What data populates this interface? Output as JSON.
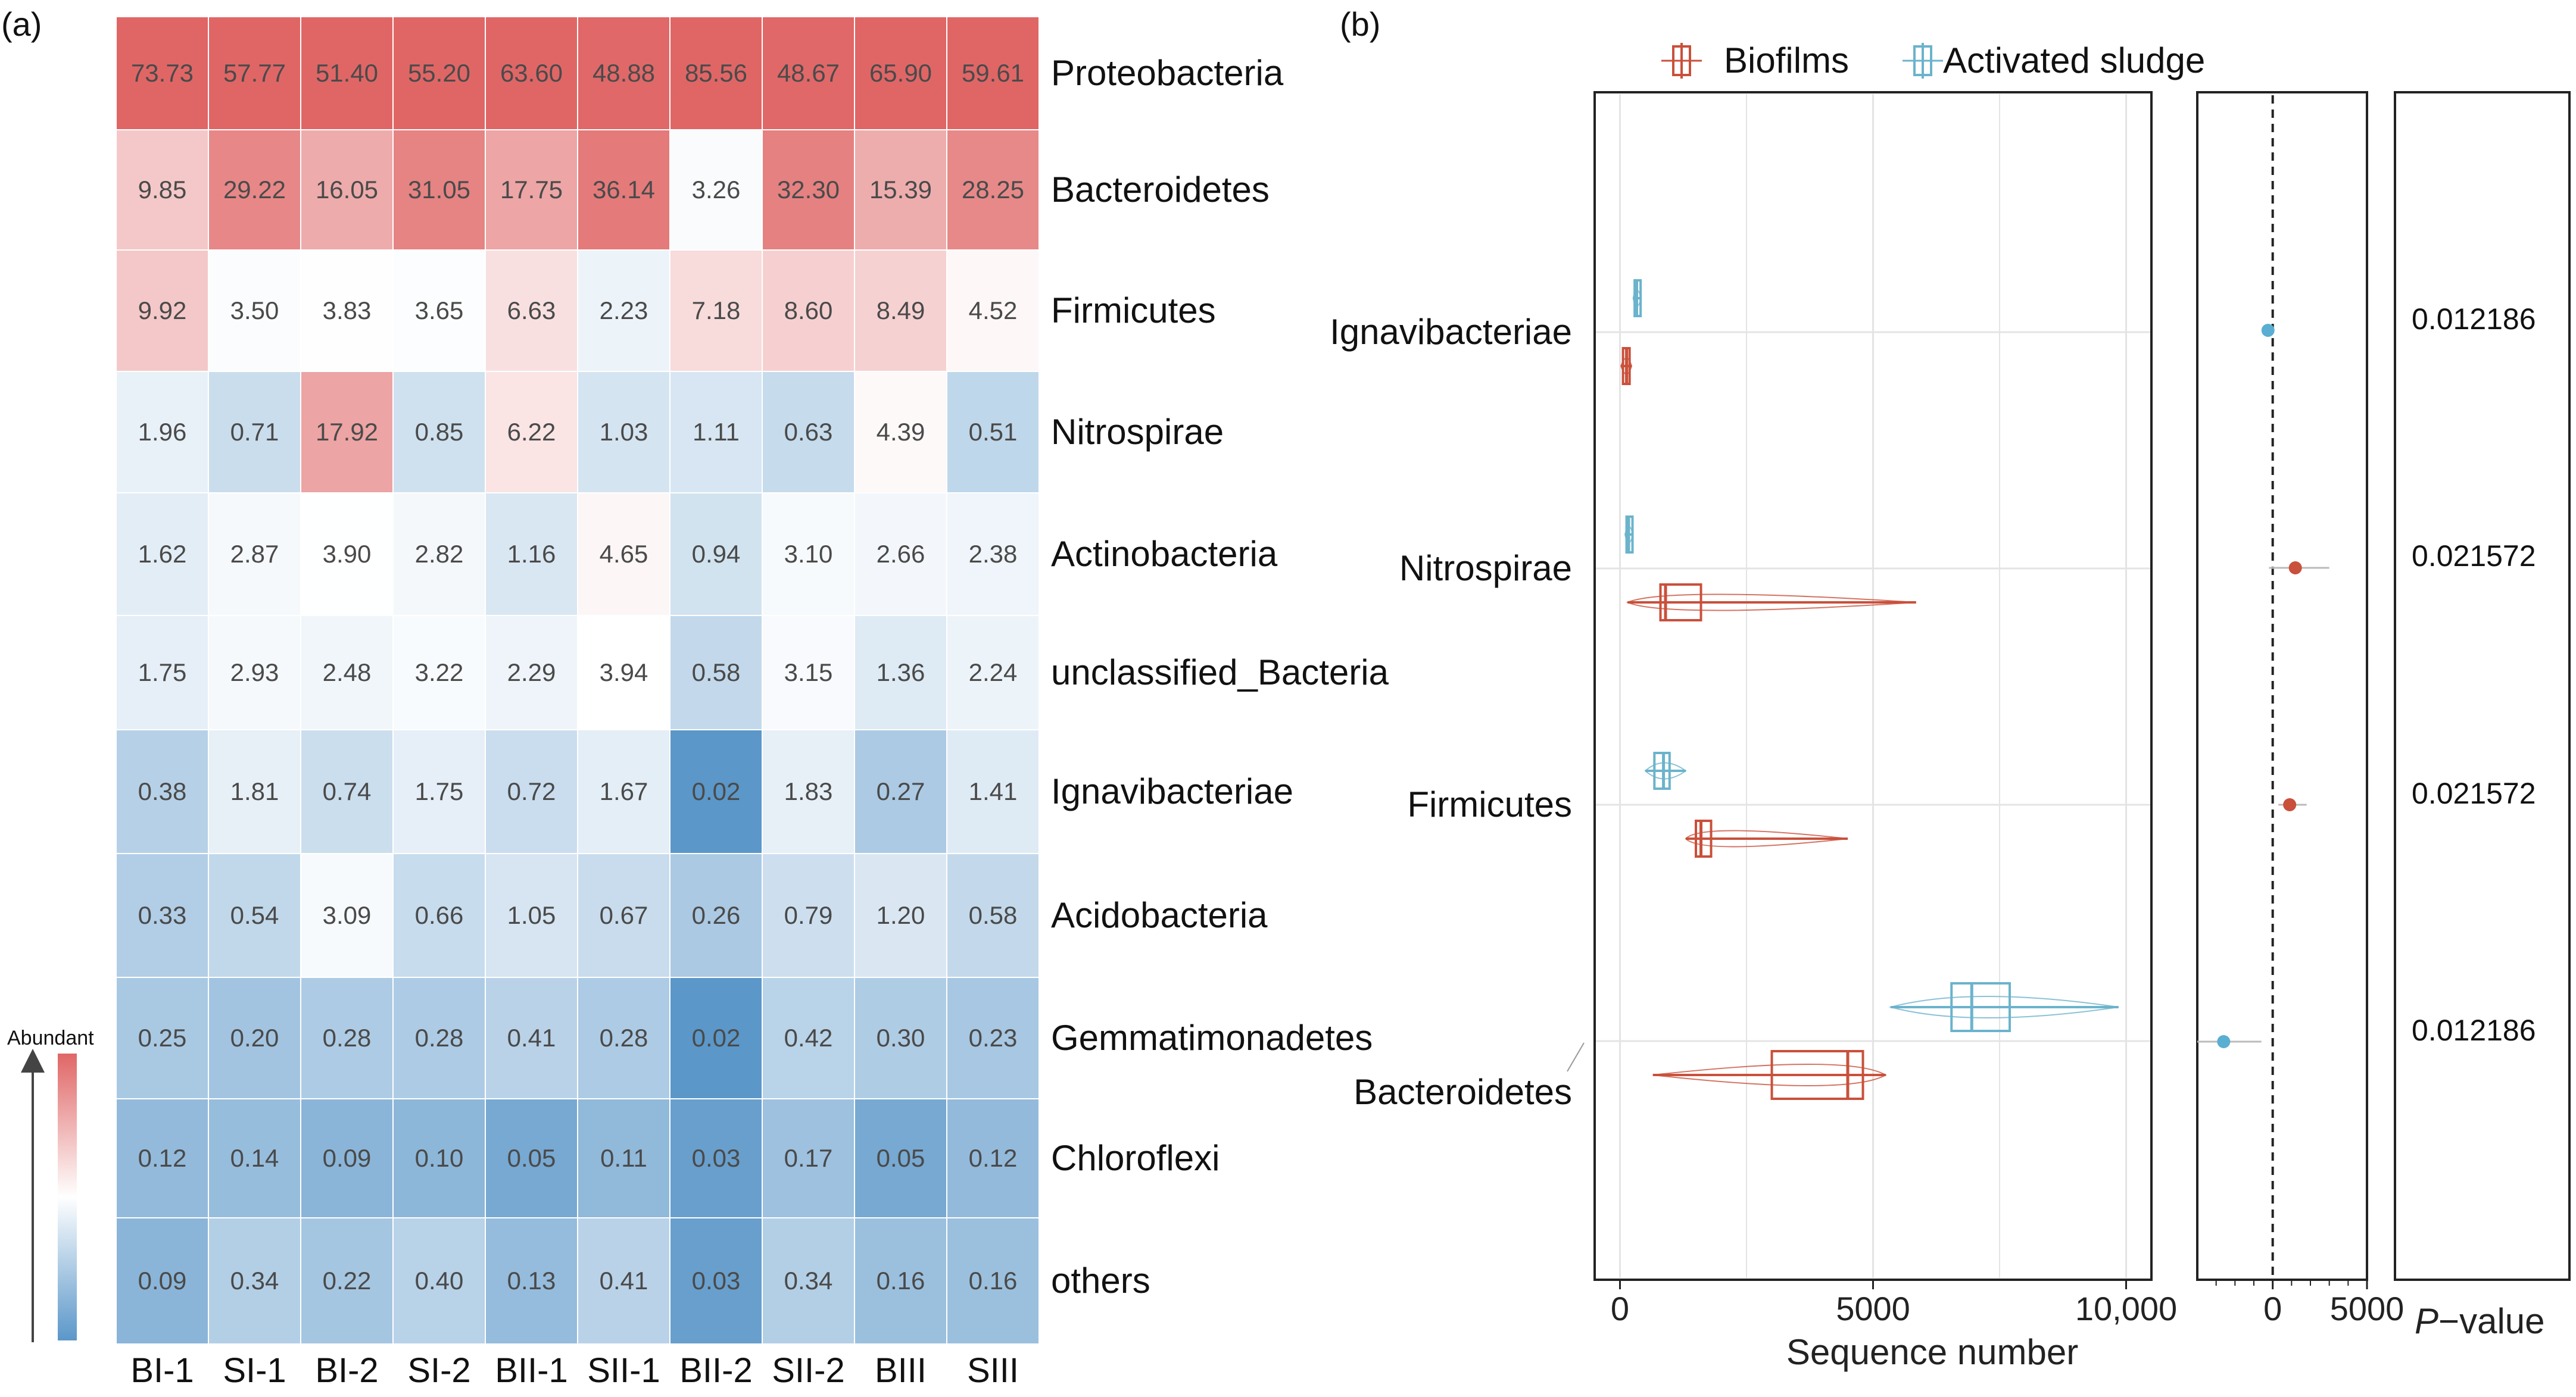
{
  "chart_data": [
    {
      "type": "heatmap",
      "panel_label": "(a)",
      "columns": [
        "BI-1",
        "SI-1",
        "BI-2",
        "SI-2",
        "BII-1",
        "SII-1",
        "BII-2",
        "SII-2",
        "BIII",
        "SIII"
      ],
      "rows": [
        "Proteobacteria",
        "Bacteroidetes",
        "Firmicutes",
        "Nitrospirae",
        "Actinobacteria",
        "unclassified_Bacteria",
        "Ignavibacteriae",
        "Acidobacteria",
        "Gemmatimonadetes",
        "Chloroflexi",
        "others"
      ],
      "values": [
        [
          "73.73",
          "57.77",
          "51.40",
          "55.20",
          "63.60",
          "48.88",
          "85.56",
          "48.67",
          "65.90",
          "59.61"
        ],
        [
          "9.85",
          "29.22",
          "16.05",
          "31.05",
          "17.75",
          "36.14",
          "3.26",
          "32.30",
          "15.39",
          "28.25"
        ],
        [
          "9.92",
          "3.50",
          "3.83",
          "3.65",
          "6.63",
          "2.23",
          "7.18",
          "8.60",
          "8.49",
          "4.52"
        ],
        [
          "1.96",
          "0.71",
          "17.92",
          "0.85",
          "6.22",
          "1.03",
          "1.11",
          "0.63",
          "4.39",
          "0.51"
        ],
        [
          "1.62",
          "2.87",
          "3.90",
          "2.82",
          "1.16",
          "4.65",
          "0.94",
          "3.10",
          "2.66",
          "2.38"
        ],
        [
          "1.75",
          "2.93",
          "2.48",
          "3.22",
          "2.29",
          "3.94",
          "0.58",
          "3.15",
          "1.36",
          "2.24"
        ],
        [
          "0.38",
          "1.81",
          "0.74",
          "1.75",
          "0.72",
          "1.67",
          "0.02",
          "1.83",
          "0.27",
          "1.41"
        ],
        [
          "0.33",
          "0.54",
          "3.09",
          "0.66",
          "1.05",
          "0.67",
          "0.26",
          "0.79",
          "1.20",
          "0.58"
        ],
        [
          "0.25",
          "0.20",
          "0.28",
          "0.28",
          "0.41",
          "0.28",
          "0.02",
          "0.42",
          "0.30",
          "0.23"
        ],
        [
          "0.12",
          "0.14",
          "0.09",
          "0.10",
          "0.05",
          "0.11",
          "0.03",
          "0.17",
          "0.05",
          "0.12"
        ],
        [
          "0.09",
          "0.34",
          "0.22",
          "0.40",
          "0.13",
          "0.41",
          "0.03",
          "0.34",
          "0.16",
          "0.16"
        ]
      ],
      "colorbar_label": "Abundant",
      "colors": {
        "high": "#e06666",
        "mid": "#ffffff",
        "low": "#5b97c9"
      }
    },
    {
      "type": "boxplot",
      "panel_label": "(b)",
      "legend": [
        {
          "name": "Biofilms",
          "color": "#c9503b"
        },
        {
          "name": "Activated sludge",
          "color": "#6bb3cc"
        }
      ],
      "categories": [
        "Ignavibacteriae",
        "Nitrospirae",
        "Firmicutes",
        "Bacteroidetes"
      ],
      "xlabel": "Sequence number",
      "xlim": [
        -500,
        10500
      ],
      "xticks": [
        0,
        5000,
        10000
      ],
      "xtick_labels": [
        "0",
        "5000",
        "10,000"
      ],
      "series": [
        {
          "name": "Activated sludge",
          "boxes": [
            {
              "category": "Ignavibacteriae",
              "min": 260,
              "q1": 290,
              "median": 330,
              "q3": 370,
              "max": 420
            },
            {
              "category": "Nitrospirae",
              "min": 100,
              "q1": 130,
              "median": 170,
              "q3": 210,
              "max": 260
            },
            {
              "category": "Firmicutes",
              "min": 500,
              "q1": 680,
              "median": 860,
              "q3": 980,
              "max": 1300
            },
            {
              "category": "Bacteroidetes",
              "min": 5350,
              "q1": 6550,
              "median": 6950,
              "q3": 7700,
              "max": 9850
            }
          ]
        },
        {
          "name": "Biofilms",
          "boxes": [
            {
              "category": "Ignavibacteriae",
              "min": 20,
              "q1": 60,
              "median": 130,
              "q3": 190,
              "max": 230
            },
            {
              "category": "Nitrospirae",
              "min": 150,
              "q1": 800,
              "median": 900,
              "q3": 1600,
              "max": 5850
            },
            {
              "category": "Firmicutes",
              "min": 1300,
              "q1": 1500,
              "median": 1600,
              "q3": 1800,
              "max": 4500
            },
            {
              "category": "Bacteroidetes",
              "min": 650,
              "q1": 3000,
              "median": 4500,
              "q3": 4800,
              "max": 5250
            }
          ]
        }
      ],
      "difference": {
        "xlim": [
          -4000,
          5000
        ],
        "xticks": [
          0,
          5000
        ],
        "xtick_labels": [
          "0",
          "5000"
        ],
        "points": [
          {
            "category": "Ignavibacteriae",
            "value": -250,
            "low": -450,
            "high": -50,
            "color": "#5aaed2"
          },
          {
            "category": "Nitrospirae",
            "value": 1200,
            "low": -200,
            "high": 3000,
            "color": "#c9503b"
          },
          {
            "category": "Firmicutes",
            "value": 900,
            "low": 300,
            "high": 1800,
            "color": "#c9503b"
          },
          {
            "category": "Bacteroidetes",
            "value": -2600,
            "low": -4000,
            "high": -600,
            "color": "#5aaed2"
          }
        ]
      },
      "pvalue_title": "P−value",
      "pvalue_title_italic_part": "P",
      "pvalues": [
        "0.012186",
        "0.021572",
        "0.021572",
        "0.012186"
      ]
    }
  ]
}
